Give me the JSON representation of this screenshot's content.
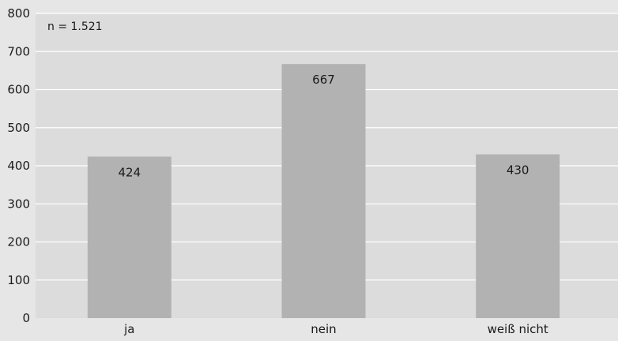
{
  "chart_data": {
    "type": "bar",
    "annotation": "n = 1.521",
    "categories": [
      "ja",
      "nein",
      "weiß nicht"
    ],
    "values": [
      424,
      667,
      430
    ],
    "value_labels": [
      "424",
      "667",
      "430"
    ],
    "ylim": [
      0,
      800
    ],
    "yticks": [
      0,
      100,
      200,
      300,
      400,
      500,
      600,
      700,
      800
    ],
    "grid": true,
    "colors": {
      "background": "#e6e6e6",
      "plot_background": "#dcdcdc",
      "bar": "#b2b2b2",
      "grid": "#ffffff",
      "text": "#1a1a1a"
    }
  }
}
